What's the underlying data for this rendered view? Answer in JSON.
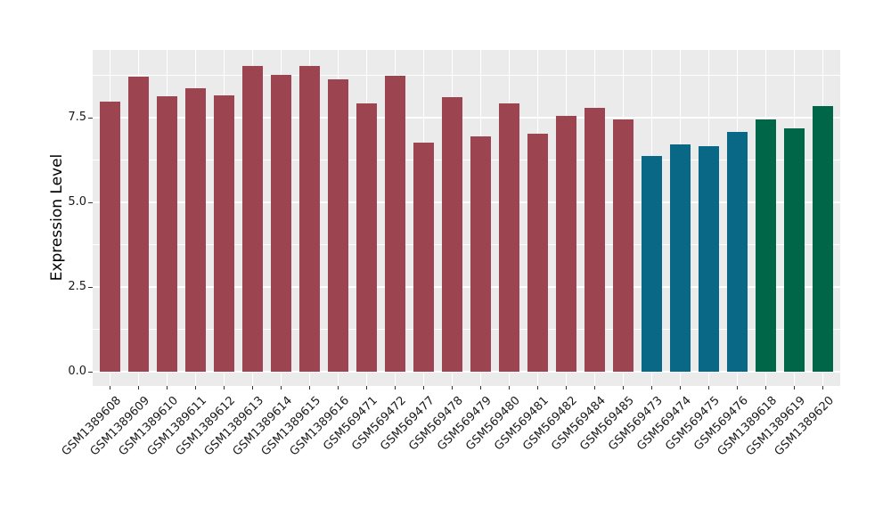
{
  "figure": {
    "background": "#FFFFFF"
  },
  "chart_data": {
    "type": "bar",
    "title": "",
    "xlabel": "",
    "ylabel": "Expression Level",
    "categories": [
      "GSM1389608",
      "GSM1389609",
      "GSM1389610",
      "GSM1389611",
      "GSM1389612",
      "GSM1389613",
      "GSM1389614",
      "GSM1389615",
      "GSM1389616",
      "GSM569471",
      "GSM569472",
      "GSM569477",
      "GSM569478",
      "GSM569479",
      "GSM569480",
      "GSM569481",
      "GSM569482",
      "GSM569484",
      "GSM569485",
      "GSM569473",
      "GSM569474",
      "GSM569475",
      "GSM569476",
      "GSM1389618",
      "GSM1389619",
      "GSM1389620"
    ],
    "values": [
      7.98,
      8.7,
      8.12,
      8.37,
      8.17,
      9.02,
      8.76,
      9.02,
      8.64,
      7.93,
      8.75,
      6.76,
      8.1,
      6.95,
      7.92,
      7.02,
      7.55,
      7.8,
      7.45,
      6.38,
      6.72,
      6.65,
      7.08,
      7.45,
      7.18,
      7.85
    ],
    "bar_groups": [
      "maroon",
      "maroon",
      "maroon",
      "maroon",
      "maroon",
      "maroon",
      "maroon",
      "maroon",
      "maroon",
      "maroon",
      "maroon",
      "maroon",
      "maroon",
      "maroon",
      "maroon",
      "maroon",
      "maroon",
      "maroon",
      "maroon",
      "blue",
      "blue",
      "blue",
      "blue",
      "green",
      "green",
      "green"
    ],
    "palette": {
      "maroon": "#9C4551",
      "blue": "#0A6887",
      "green": "#006648"
    },
    "yticks": [
      0.0,
      2.5,
      5.0,
      7.5
    ],
    "ytick_labels": [
      "0.0",
      "2.5",
      "5.0",
      "7.5"
    ],
    "minor_yticks": [
      1.25,
      3.75,
      6.25,
      8.75
    ],
    "ylim": [
      -0.42,
      9.5
    ],
    "grid": "on",
    "legend": "none",
    "plot_background": "#EBEBEB",
    "grid_color": "#FFFFFF",
    "axis_text_color": "#1A1A1A",
    "tick_mark_color": "#333333"
  }
}
